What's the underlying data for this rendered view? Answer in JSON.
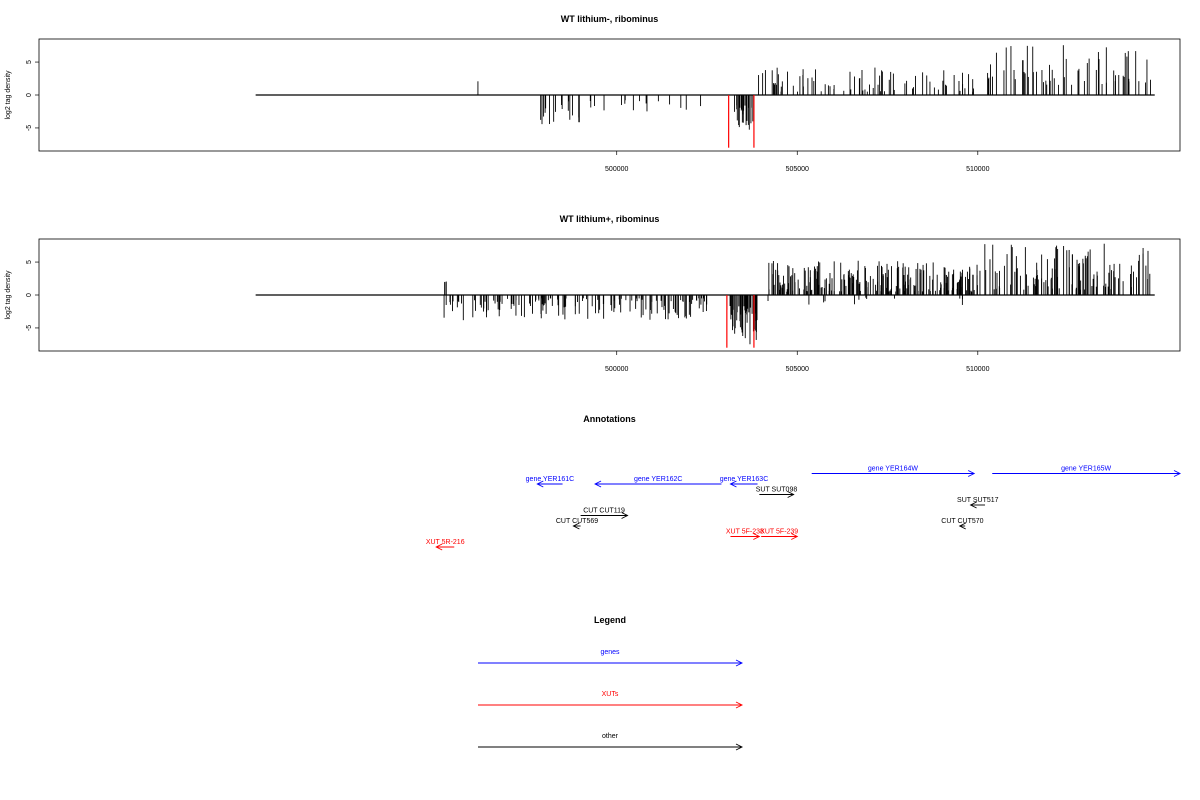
{
  "chart_data": [
    {
      "type": "bar",
      "title": "WT lithium-, ribominus",
      "ylabel": "log2 tag density",
      "xlabel": "",
      "xlim": [
        484000,
        515600
      ],
      "ylim": [
        -8.5,
        8.5
      ],
      "xticks": [
        500000,
        505000,
        510000
      ],
      "xtick_labels": [
        "500000",
        "505000",
        "510000"
      ],
      "yticks": [
        -5,
        0,
        5
      ],
      "ytick_labels": [
        "-5",
        "0",
        "5"
      ],
      "baseline": [
        490000,
        514900
      ],
      "red_markers": [
        {
          "x": 503100,
          "y": -8.0
        },
        {
          "x": 503800,
          "y": -8.0
        }
      ],
      "seed": 7,
      "neg_regions": [
        {
          "from": 497800,
          "to": 499700,
          "n": 22,
          "min": 0.8,
          "max": 4.5
        },
        {
          "from": 499700,
          "to": 502700,
          "n": 12,
          "min": 0.8,
          "max": 2.5
        },
        {
          "from": 503200,
          "to": 503800,
          "n": 22,
          "min": 1.5,
          "max": 5.5
        }
      ],
      "pos_regions": [
        {
          "from": 496100,
          "to": 496200,
          "n": 1,
          "min": 2.0,
          "max": 2.1
        },
        {
          "from": 503900,
          "to": 504400,
          "n": 8,
          "min": 1.5,
          "max": 3.8
        },
        {
          "from": 504400,
          "to": 510000,
          "n": 70,
          "min": 0.5,
          "max": 4.2
        },
        {
          "from": 510200,
          "to": 514800,
          "n": 60,
          "min": 1.5,
          "max": 7.8
        }
      ]
    },
    {
      "type": "bar",
      "title": "WT lithium+, ribominus",
      "ylabel": "log2 tag density",
      "xlabel": "",
      "xlim": [
        484000,
        515600
      ],
      "ylim": [
        -8.5,
        8.5
      ],
      "xticks": [
        500000,
        505000,
        510000
      ],
      "xtick_labels": [
        "500000",
        "505000",
        "510000"
      ],
      "yticks": [
        -5,
        0,
        5
      ],
      "ytick_labels": [
        "-5",
        "0",
        "5"
      ],
      "baseline": [
        490000,
        514900
      ],
      "red_markers": [
        {
          "x": 503050,
          "y": -8.0
        },
        {
          "x": 503800,
          "y": -8.0
        }
      ],
      "seed": 13,
      "neg_regions": [
        {
          "from": 495200,
          "to": 496800,
          "n": 30,
          "min": 0.8,
          "max": 4.0
        },
        {
          "from": 496800,
          "to": 502500,
          "n": 120,
          "min": 0.5,
          "max": 3.8
        },
        {
          "from": 503050,
          "to": 503900,
          "n": 45,
          "min": 1.5,
          "max": 7.5
        },
        {
          "from": 504000,
          "to": 510000,
          "n": 12,
          "min": 0.4,
          "max": 1.6
        }
      ],
      "pos_regions": [
        {
          "from": 495200,
          "to": 495300,
          "n": 3,
          "min": 1.8,
          "max": 2.6
        },
        {
          "from": 504200,
          "to": 510000,
          "n": 220,
          "min": 0.5,
          "max": 5.2
        },
        {
          "from": 510000,
          "to": 514800,
          "n": 110,
          "min": 0.8,
          "max": 7.8
        }
      ]
    }
  ],
  "annotations": {
    "title": "Annotations",
    "colors": {
      "genes": "#0000ff",
      "XUTs": "#ff0000",
      "other": "#000000"
    },
    "items": [
      {
        "label": "gene YER161C",
        "from": 498500,
        "to": 497800,
        "row": 2,
        "kind": "genes"
      },
      {
        "label": "gene YER162C",
        "from": 502900,
        "to": 499400,
        "row": 2,
        "kind": "genes"
      },
      {
        "label": "gene YER163C",
        "from": 503900,
        "to": 503150,
        "row": 2,
        "kind": "genes"
      },
      {
        "label": "gene YER164W",
        "from": 505400,
        "to": 509900,
        "row": 3,
        "kind": "genes"
      },
      {
        "label": "gene YER165W",
        "from": 510400,
        "to": 515600,
        "row": 3,
        "kind": "genes"
      },
      {
        "label": "SUT SUT098",
        "from": 503950,
        "to": 504900,
        "row": 1,
        "kind": "other"
      },
      {
        "label": "SUT SUT517",
        "from": 510200,
        "to": 509800,
        "row": 0,
        "kind": "other"
      },
      {
        "label": "CUT CUT119",
        "from": 499000,
        "to": 500300,
        "row": -1,
        "kind": "other"
      },
      {
        "label": "CUT CUT569",
        "from": 499000,
        "to": 498800,
        "row": -2,
        "kind": "other"
      },
      {
        "label": "CUT CUT570",
        "from": 509650,
        "to": 509500,
        "row": -2,
        "kind": "other"
      },
      {
        "label": "XUT 5F-238",
        "from": 503150,
        "to": 503950,
        "row": -3,
        "kind": "XUTs"
      },
      {
        "label": "XUT 5F-239",
        "from": 504000,
        "to": 505000,
        "row": -3,
        "kind": "XUTs"
      },
      {
        "label": "XUT 5R-216",
        "from": 495500,
        "to": 495000,
        "row": -4,
        "kind": "XUTs"
      }
    ]
  },
  "legend": {
    "title": "Legend",
    "items": [
      {
        "label": "genes",
        "kind": "genes"
      },
      {
        "label": "XUTs",
        "kind": "XUTs"
      },
      {
        "label": "other",
        "kind": "other"
      }
    ]
  }
}
